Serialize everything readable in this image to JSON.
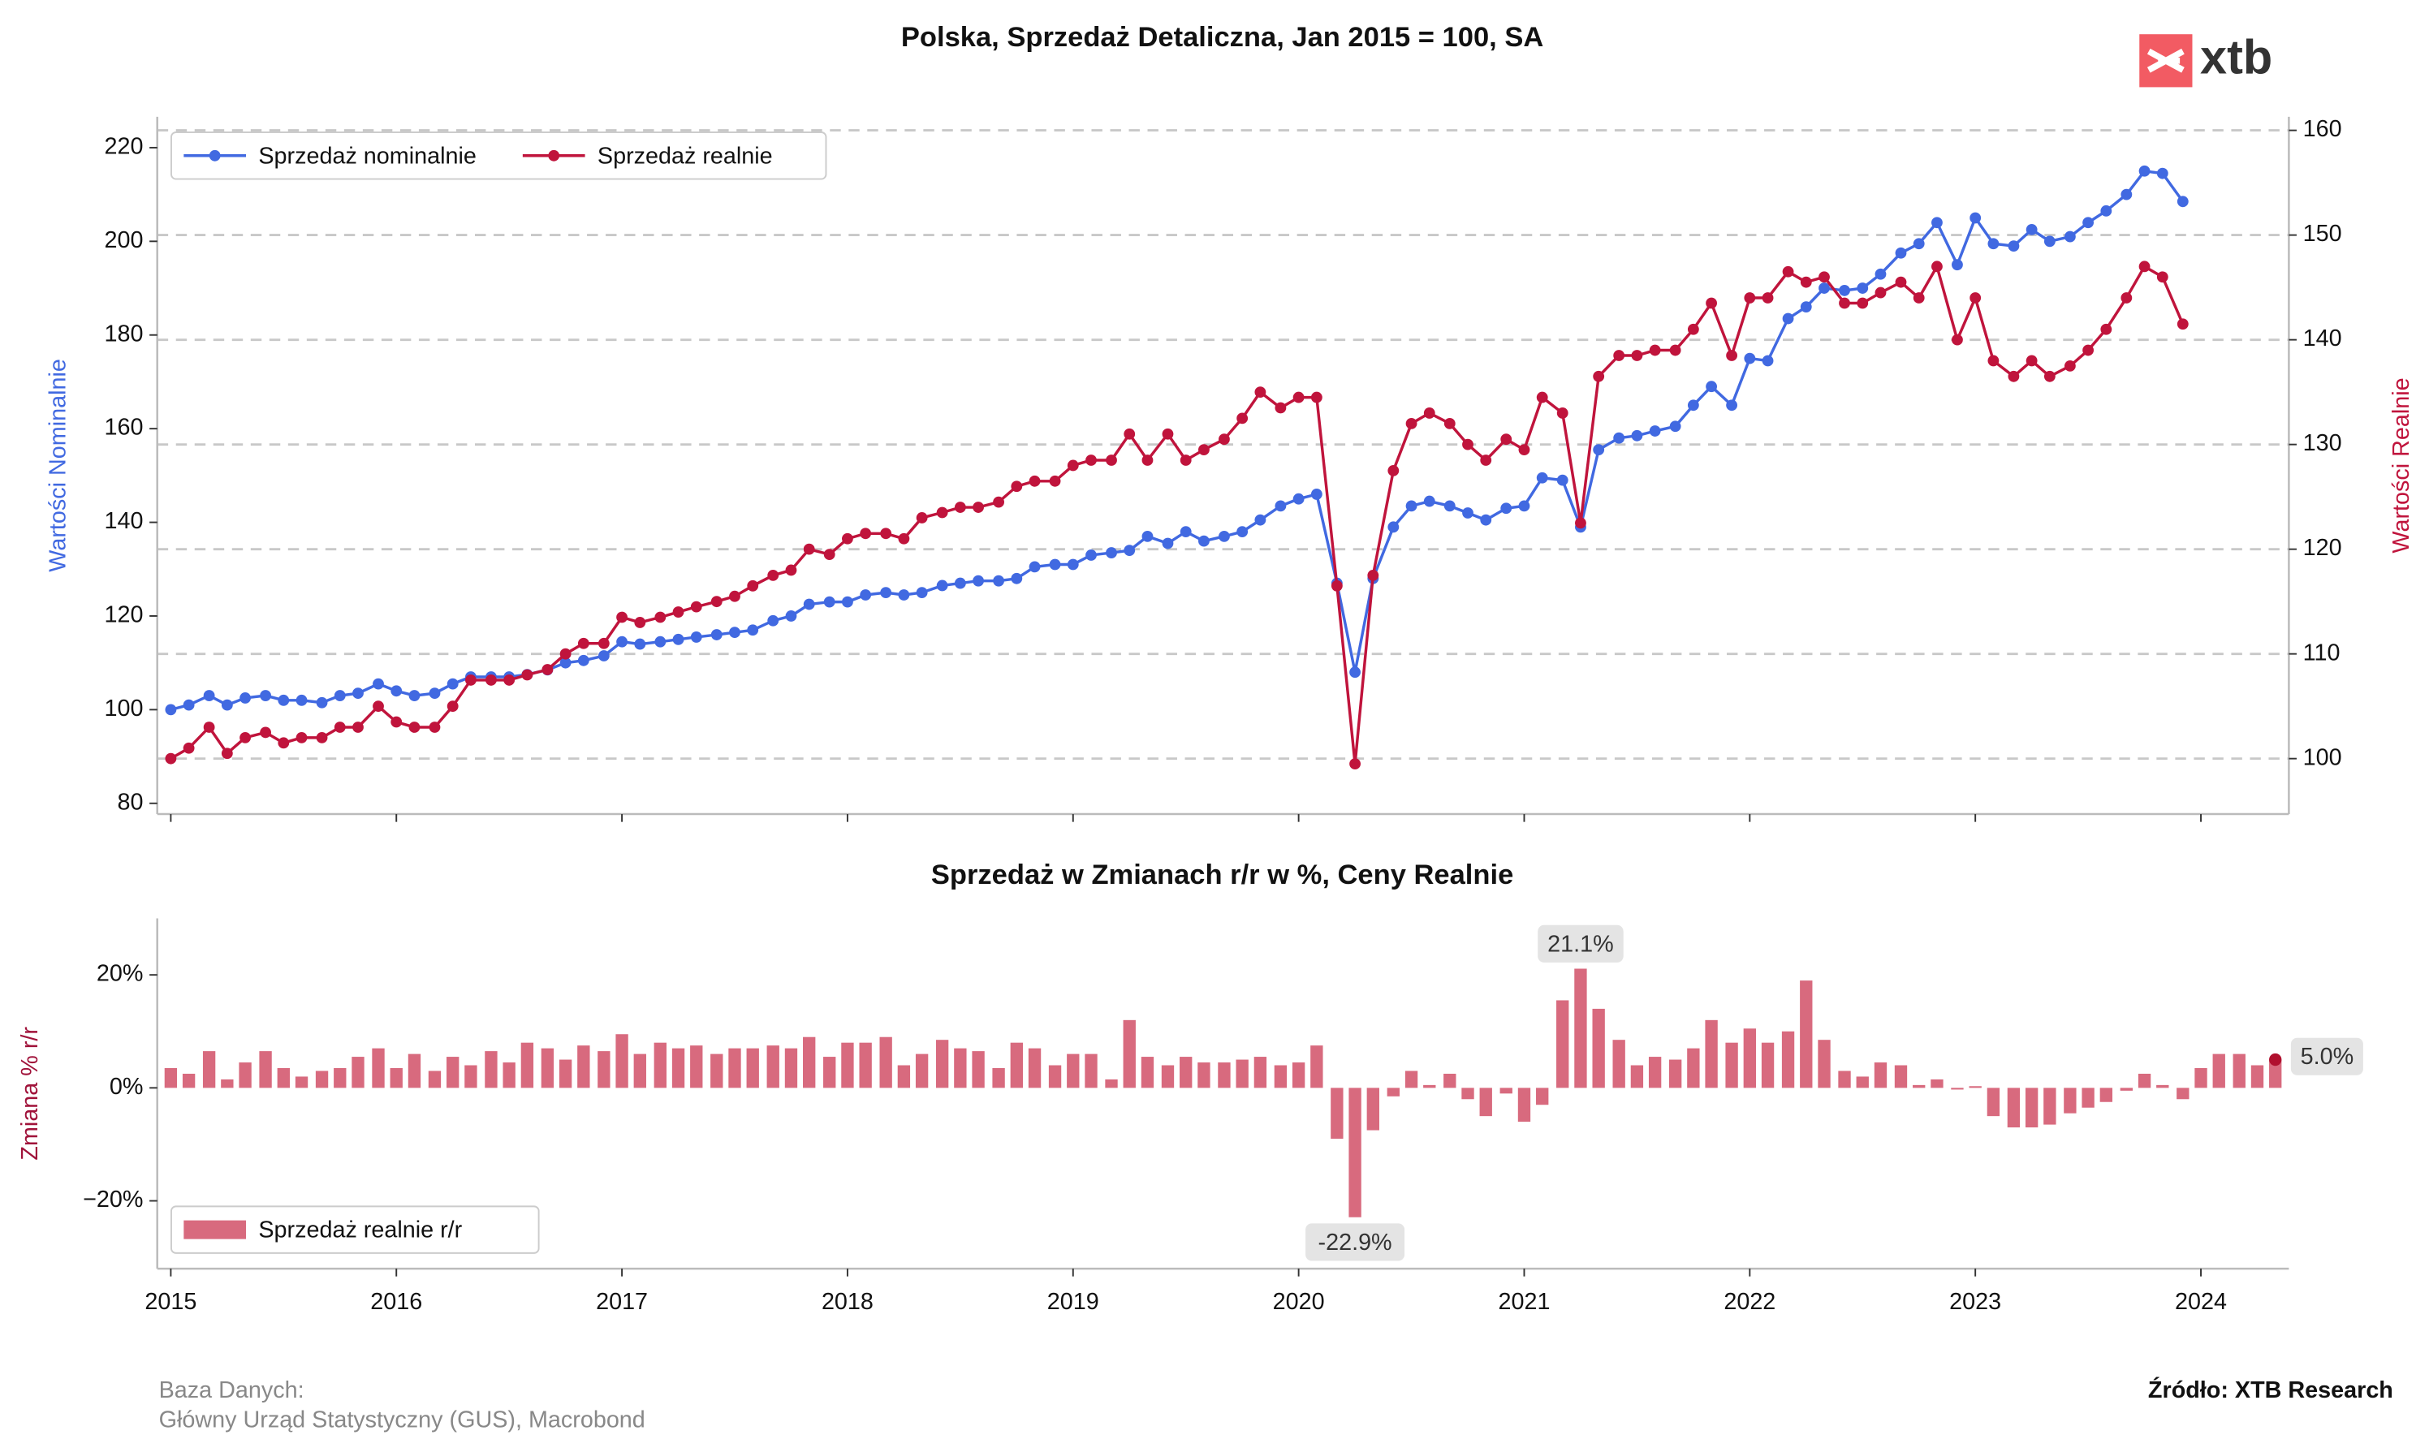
{
  "logo": "xtb",
  "footer": {
    "database_label": "Baza Danych:",
    "database": "Główny Urząd Statystyczny (GUS), Macrobond",
    "source": "Źródło: XTB Research"
  },
  "chart_data": [
    {
      "type": "line",
      "title": "Polska, Sprzedaż Detaliczna, Jan 2015 = 100, SA",
      "ylabel": "Wartości Nominalnie",
      "y2label": "Wartości Realnie",
      "xlim": [
        2014.94,
        2024.39
      ],
      "xticks": [
        2015,
        2016,
        2017,
        2018,
        2019,
        2020,
        2021,
        2022,
        2023,
        2024
      ],
      "ylim": [
        77.7,
        226.6
      ],
      "yticks": [
        80,
        100,
        120,
        140,
        160,
        180,
        200,
        220
      ],
      "y2lim": [
        94.7,
        161.3
      ],
      "y2ticks": [
        100,
        110,
        120,
        130,
        140,
        150,
        160
      ],
      "grid": true,
      "legend": "upper left",
      "x": [
        2015,
        2015.08,
        2015.17,
        2015.25,
        2015.33,
        2015.42,
        2015.5,
        2015.58,
        2015.67,
        2015.75,
        2015.83,
        2015.92,
        2016,
        2016.08,
        2016.17,
        2016.25,
        2016.33,
        2016.42,
        2016.5,
        2016.58,
        2016.67,
        2016.75,
        2016.83,
        2016.92,
        2017,
        2017.08,
        2017.17,
        2017.25,
        2017.33,
        2017.42,
        2017.5,
        2017.58,
        2017.67,
        2017.75,
        2017.83,
        2017.92,
        2018,
        2018.08,
        2018.17,
        2018.25,
        2018.33,
        2018.42,
        2018.5,
        2018.58,
        2018.67,
        2018.75,
        2018.83,
        2018.92,
        2019,
        2019.08,
        2019.17,
        2019.25,
        2019.33,
        2019.42,
        2019.5,
        2019.58,
        2019.67,
        2019.75,
        2019.83,
        2019.92,
        2020,
        2020.08,
        2020.17,
        2020.25,
        2020.33,
        2020.42,
        2020.5,
        2020.58,
        2020.67,
        2020.75,
        2020.83,
        2020.92,
        2021,
        2021.08,
        2021.17,
        2021.25,
        2021.33,
        2021.42,
        2021.5,
        2021.58,
        2021.67,
        2021.75,
        2021.83,
        2021.92,
        2022,
        2022.08,
        2022.17,
        2022.25,
        2022.33,
        2022.42,
        2022.5,
        2022.58,
        2022.67,
        2022.75,
        2022.83,
        2022.92,
        2023,
        2023.08,
        2023.17,
        2023.25,
        2023.33,
        2023.42,
        2023.5,
        2023.58,
        2023.67,
        2023.75,
        2023.83,
        2023.92
      ],
      "series": [
        {
          "name": "Sprzedaż nominalnie",
          "color": "#4169e1",
          "axis": "y",
          "values": [
            100,
            101,
            103,
            101,
            102.5,
            103,
            102,
            102,
            101.5,
            103,
            103.5,
            105.5,
            104,
            103,
            103.5,
            105.5,
            107,
            107,
            107,
            107.5,
            108.5,
            110,
            110.5,
            111.5,
            114.5,
            114,
            114.5,
            115,
            115.5,
            116,
            116.5,
            117,
            119,
            120,
            122.5,
            123,
            123,
            124.5,
            125,
            124.5,
            125,
            126.5,
            127,
            127.5,
            127.5,
            128,
            130.5,
            131,
            131,
            133,
            133.5,
            134,
            137,
            135.5,
            138,
            136,
            137,
            138,
            140.5,
            143.5,
            145,
            146,
            127,
            108,
            128,
            139,
            143.5,
            144.5,
            143.5,
            142,
            140.5,
            143,
            143.5,
            149.5,
            149,
            139,
            155.5,
            158,
            158.5,
            159.5,
            160.5,
            165,
            169,
            165,
            175,
            174.5,
            183.5,
            186,
            190,
            189.5,
            190,
            193,
            197.5,
            199.5,
            204,
            195,
            205,
            199.5,
            199,
            202.5,
            200,
            201,
            204,
            206.5,
            210,
            215,
            214.5,
            208.5
          ]
        },
        {
          "name": "Sprzedaż realnie",
          "color": "#c0143c",
          "axis": "y2",
          "values": [
            100,
            101,
            103,
            100.5,
            102,
            102.5,
            101.5,
            102,
            102,
            103,
            103,
            105,
            103.5,
            103,
            103,
            105,
            107.5,
            107.5,
            107.5,
            108,
            108.5,
            110,
            111,
            111,
            113.5,
            113,
            113.5,
            114,
            114.5,
            115,
            115.5,
            116.5,
            117.5,
            118,
            120,
            119.5,
            121,
            121.5,
            121.5,
            121,
            123,
            123.5,
            124,
            124,
            124.5,
            126,
            126.5,
            126.5,
            128,
            128.5,
            128.5,
            131,
            128.5,
            131,
            128.5,
            129.5,
            130.5,
            132.5,
            135,
            133.5,
            134.5,
            134.5,
            116.5,
            99.5,
            117.5,
            127.5,
            132,
            133,
            132,
            130,
            128.5,
            130.5,
            129.5,
            134.5,
            133,
            122.5,
            136.5,
            138.5,
            138.5,
            139,
            139,
            141,
            143.5,
            138.5,
            144,
            144,
            146.5,
            145.5,
            146,
            143.5,
            143.5,
            144.5,
            145.5,
            144,
            147,
            140,
            144,
            138,
            136.5,
            138,
            136.5,
            137.5,
            139,
            141,
            144,
            147,
            146,
            141.5
          ]
        }
      ]
    },
    {
      "type": "bar",
      "title": "Sprzedaż w Zmianach r/r w %, Ceny Realnie",
      "ylabel": "Zmiana % r/r",
      "xlim": [
        2014.94,
        2024.39
      ],
      "xticks": [
        2015,
        2016,
        2017,
        2018,
        2019,
        2020,
        2021,
        2022,
        2023,
        2024
      ],
      "ylim": [
        -32,
        30
      ],
      "yticks": [
        {
          "value": -20,
          "label": "−20%"
        },
        {
          "value": 0,
          "label": "0%"
        },
        {
          "value": 20,
          "label": "20%"
        }
      ],
      "legend": "lower left",
      "x": [
        2015,
        2015.08,
        2015.17,
        2015.25,
        2015.33,
        2015.42,
        2015.5,
        2015.58,
        2015.67,
        2015.75,
        2015.83,
        2015.92,
        2016,
        2016.08,
        2016.17,
        2016.25,
        2016.33,
        2016.42,
        2016.5,
        2016.58,
        2016.67,
        2016.75,
        2016.83,
        2016.92,
        2017,
        2017.08,
        2017.17,
        2017.25,
        2017.33,
        2017.42,
        2017.5,
        2017.58,
        2017.67,
        2017.75,
        2017.83,
        2017.92,
        2018,
        2018.08,
        2018.17,
        2018.25,
        2018.33,
        2018.42,
        2018.5,
        2018.58,
        2018.67,
        2018.75,
        2018.83,
        2018.92,
        2019,
        2019.08,
        2019.17,
        2019.25,
        2019.33,
        2019.42,
        2019.5,
        2019.58,
        2019.67,
        2019.75,
        2019.83,
        2019.92,
        2020,
        2020.08,
        2020.17,
        2020.25,
        2020.33,
        2020.42,
        2020.5,
        2020.58,
        2020.67,
        2020.75,
        2020.83,
        2020.92,
        2021,
        2021.08,
        2021.17,
        2021.25,
        2021.33,
        2021.42,
        2021.5,
        2021.58,
        2021.67,
        2021.75,
        2021.83,
        2021.92,
        2022,
        2022.08,
        2022.17,
        2022.25,
        2022.33,
        2022.42,
        2022.5,
        2022.58,
        2022.67,
        2022.75,
        2022.83,
        2022.92,
        2023,
        2023.08,
        2023.17,
        2023.25,
        2023.33,
        2023.42,
        2023.5,
        2023.58,
        2023.67,
        2023.75,
        2023.83,
        2023.92,
        2024,
        2024.08,
        2024.17,
        2024.25,
        2024.33
      ],
      "series": [
        {
          "name": "Sprzedaż realnie r/r",
          "color": "#d86a7e",
          "values": [
            3.5,
            2.5,
            6.5,
            1.5,
            4.5,
            6.5,
            3.5,
            2,
            3,
            3.5,
            5.5,
            7,
            3.5,
            6,
            3,
            5.5,
            4,
            6.5,
            4.5,
            8,
            7,
            5,
            7.5,
            6.5,
            9.5,
            6,
            8,
            7,
            7.5,
            6,
            7,
            7,
            7.5,
            7,
            9,
            5.5,
            8,
            8,
            9,
            4,
            6,
            8.5,
            7,
            6.5,
            3.5,
            8,
            7,
            4,
            6,
            6,
            1.5,
            12,
            5.5,
            4,
            5.5,
            4.5,
            4.5,
            5,
            5.5,
            4,
            4.5,
            7.5,
            -9,
            -22.9,
            -7.5,
            -1.5,
            3,
            0.5,
            2.5,
            -2,
            -5,
            -1,
            -6,
            -3,
            15.5,
            21.1,
            14,
            8.5,
            4,
            5.5,
            5,
            7,
            12,
            8,
            10.5,
            8,
            10,
            19,
            8.5,
            3,
            2,
            4.5,
            4,
            0.5,
            1.5,
            -0.3,
            0.3,
            -5,
            -7,
            -7,
            -6.5,
            -4.5,
            -3.5,
            -2.5,
            -0.5,
            2.5,
            0.5,
            -2,
            3.5,
            6,
            6,
            4,
            5.0
          ],
          "value_labels": [
            null,
            null,
            null,
            null,
            null,
            null,
            null,
            null,
            null,
            null,
            null,
            null,
            null,
            null,
            null,
            null,
            null,
            null,
            null,
            null,
            null,
            null,
            null,
            null,
            null,
            null,
            null,
            null,
            null,
            null,
            null,
            null,
            null,
            null,
            null,
            null,
            null,
            null,
            null,
            null,
            null,
            null,
            null,
            null,
            null,
            null,
            null,
            null,
            null,
            null,
            null,
            null,
            null,
            null,
            null,
            null,
            null,
            null,
            null,
            null,
            null,
            null,
            null,
            "-22.9%",
            null,
            null,
            null,
            null,
            null,
            null,
            null,
            null,
            null,
            null,
            null,
            "21.1%",
            null,
            null,
            null,
            null,
            null,
            null,
            null,
            null,
            null,
            null,
            null,
            null,
            null,
            null,
            null,
            null,
            null,
            null,
            null,
            null,
            null,
            null,
            null,
            null,
            null,
            null,
            null,
            null,
            null,
            null,
            null,
            null,
            null,
            null,
            null,
            null,
            "5.0%"
          ]
        }
      ]
    }
  ]
}
